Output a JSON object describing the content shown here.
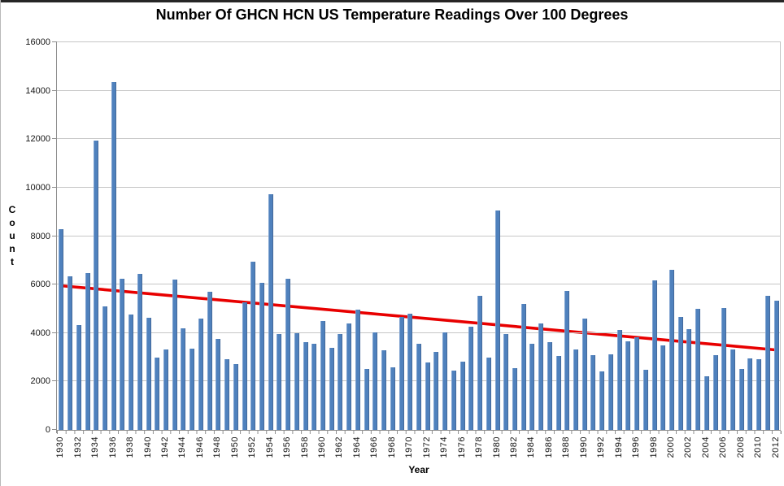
{
  "chart_data": {
    "type": "bar",
    "title": "Number Of GHCN HCN US Temperature Readings Over 100 Degrees",
    "xlabel": "Year",
    "ylabel": "Count",
    "ylim": [
      0,
      16000
    ],
    "yticks": [
      0,
      2000,
      4000,
      6000,
      8000,
      10000,
      12000,
      14000,
      16000
    ],
    "x_tick_every": 2,
    "grid": "horizontal",
    "legend": "none",
    "bar_color": "#4f81bd",
    "trend_color": "#e80000",
    "gridline_color": "#c6c6c6",
    "axis_color": "#8e8e8e",
    "categories": [
      1930,
      1931,
      1932,
      1933,
      1934,
      1935,
      1936,
      1937,
      1938,
      1939,
      1940,
      1941,
      1942,
      1943,
      1944,
      1945,
      1946,
      1947,
      1948,
      1949,
      1950,
      1951,
      1952,
      1953,
      1954,
      1955,
      1956,
      1957,
      1958,
      1959,
      1960,
      1961,
      1962,
      1963,
      1964,
      1965,
      1966,
      1967,
      1968,
      1969,
      1970,
      1971,
      1972,
      1973,
      1974,
      1975,
      1976,
      1977,
      1978,
      1979,
      1980,
      1981,
      1982,
      1983,
      1984,
      1985,
      1986,
      1987,
      1988,
      1989,
      1990,
      1991,
      1992,
      1993,
      1994,
      1995,
      1996,
      1997,
      1998,
      1999,
      2000,
      2001,
      2002,
      2003,
      2004,
      2005,
      2006,
      2007,
      2008,
      2009,
      2010,
      2011,
      2012
    ],
    "values": [
      8270,
      6350,
      4340,
      6460,
      11930,
      5100,
      14360,
      6240,
      4760,
      6450,
      4630,
      2980,
      3310,
      6200,
      4210,
      3370,
      4580,
      5700,
      3750,
      2920,
      2710,
      5270,
      6940,
      6060,
      9740,
      3950,
      6240,
      3980,
      3610,
      3550,
      4480,
      3390,
      3960,
      4390,
      4950,
      2530,
      4040,
      3280,
      2580,
      4670,
      4790,
      3560,
      2770,
      3230,
      4020,
      2440,
      2810,
      4260,
      5550,
      2980,
      9050,
      3960,
      2550,
      5190,
      3570,
      4410,
      3610,
      3050,
      5730,
      3310,
      4580,
      3090,
      2420,
      3110,
      4120,
      3670,
      3810,
      2470,
      6160,
      3500,
      6610,
      4670,
      4150,
      5010,
      2200,
      3070,
      5040,
      3330,
      2530,
      2950,
      2920,
      5520,
      5320
    ],
    "trendline": {
      "x1": 1930,
      "v1": 5950,
      "x2": 2012,
      "v2": 3300
    }
  }
}
